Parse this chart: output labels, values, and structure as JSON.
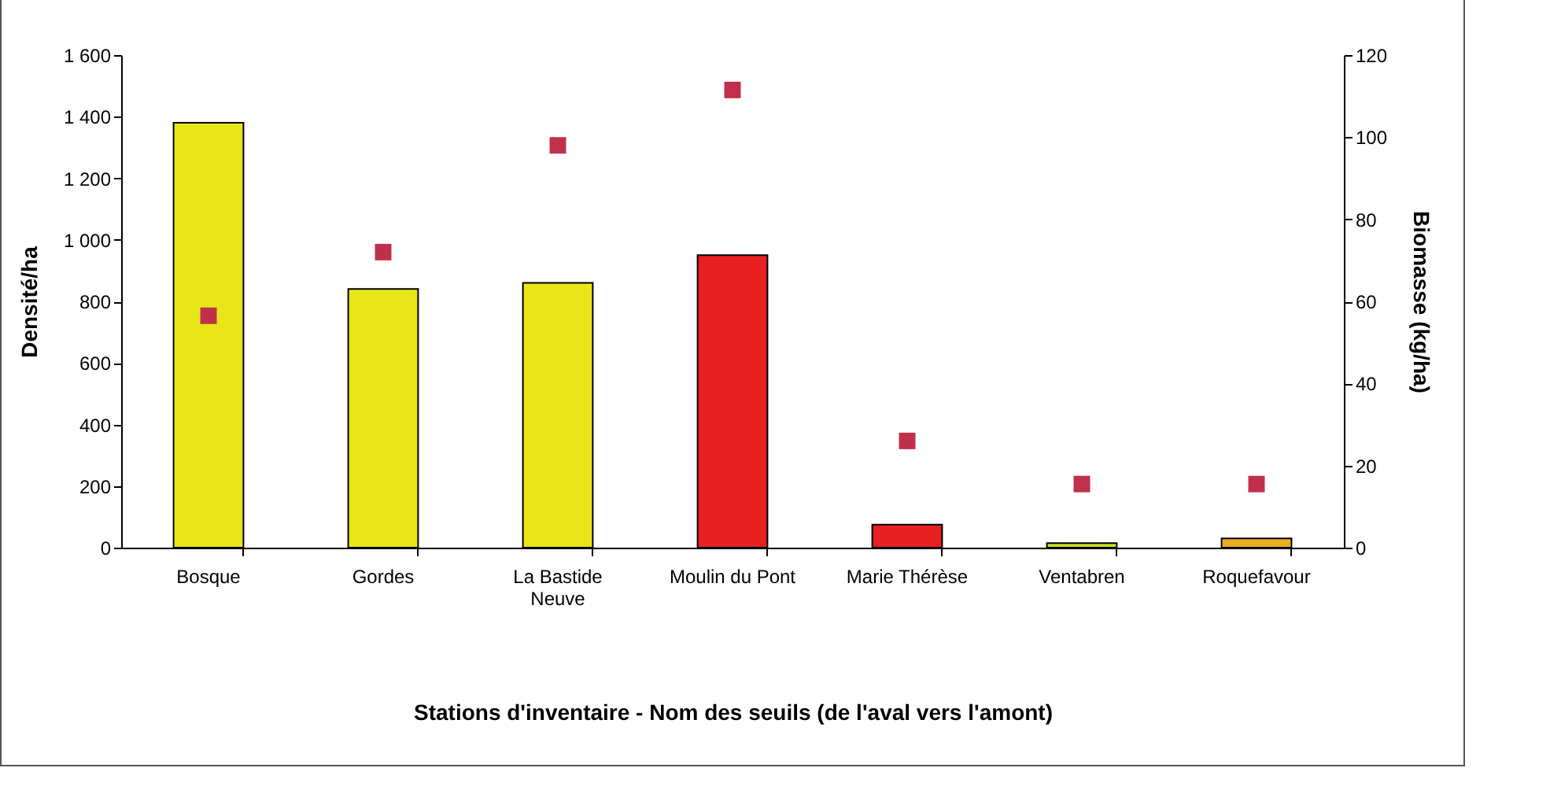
{
  "chart_data": {
    "type": "bar",
    "xlabel": "Stations d'inventaire - Nom des  seuils (de l'aval vers l'amont)",
    "ylabel": "Densité/ha",
    "y2label": "Biomasse (kg/ha)",
    "categories": [
      "Bosque",
      "Gordes",
      "La Bastide Neuve",
      "Moulin du Pont",
      "Marie Thérèse",
      "Ventabren",
      "Roquefavour"
    ],
    "series": [
      {
        "colors": [
          "#e8e619",
          "#e8e619",
          "#e8e619",
          "#e82020",
          "#e82020",
          "#c8e020",
          "#e8b020"
        ],
        "values": [
          1380,
          840,
          860,
          950,
          75,
          15,
          30
        ]
      },
      {
        "type": "scatter",
        "axis": "y2",
        "color": "#c0304a",
        "values": [
          56.5,
          72,
          98,
          111.5,
          26,
          15.5,
          15.5
        ]
      }
    ],
    "ylim": [
      0,
      1600
    ],
    "yticks": [
      0,
      200,
      400,
      600,
      800,
      {
        "value": 1000,
        "label": "1 000"
      },
      {
        "value": 1200,
        "label": "1 200"
      },
      {
        "value": 1400,
        "label": "1 400"
      },
      {
        "value": 1600,
        "label": "1 600"
      }
    ],
    "y2lim": [
      0,
      120
    ],
    "y2ticks": [
      0,
      20,
      40,
      60,
      80,
      100,
      120
    ],
    "marker": "square",
    "grid": false
  }
}
